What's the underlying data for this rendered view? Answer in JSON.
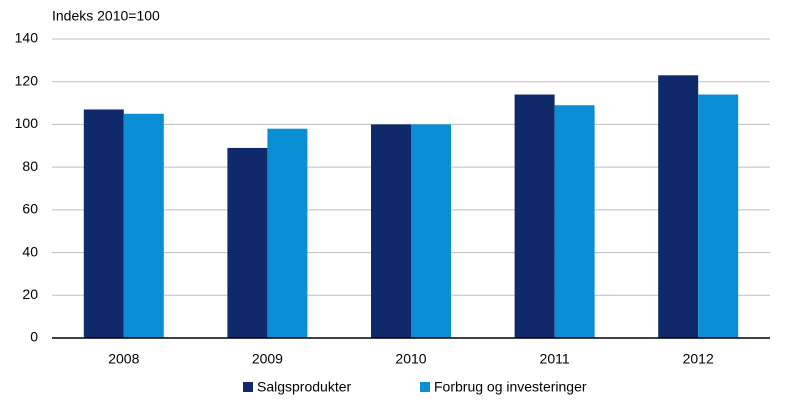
{
  "chart_data": {
    "type": "bar",
    "y_label": "Indeks 2010=100",
    "categories": [
      "2008",
      "2009",
      "2010",
      "2011",
      "2012"
    ],
    "series": [
      {
        "name": "Salgsprodukter",
        "color": "#10296a",
        "values": [
          107,
          89,
          100,
          114,
          123
        ]
      },
      {
        "name": "Forbrug og investeringer",
        "color": "#0a8fd4",
        "values": [
          105,
          98,
          100,
          109,
          114
        ]
      }
    ],
    "ylim": [
      0,
      140
    ],
    "yticks": [
      0,
      20,
      40,
      60,
      80,
      100,
      120,
      140
    ],
    "grid": true,
    "legend": "bottom"
  }
}
